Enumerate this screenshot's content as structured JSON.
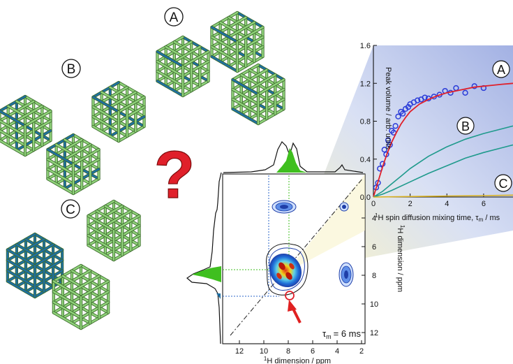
{
  "structure_labels": [
    "A",
    "B",
    "C"
  ],
  "question_mark": "?",
  "colors": {
    "green_cube": "#8fd17a",
    "blue_cube": "#1f6fa3",
    "fit_curve": "#e0202a",
    "data_points": "#2b3cd8",
    "model_curves": "#1f9a8c",
    "spectrum_fill": "#3fbf1f",
    "arrow": "#e02020"
  },
  "spectrum": {
    "mixing_time_label": "τ",
    "mixing_time_subscript": "m",
    "mixing_time_value": "= 6 ms",
    "x_axis_label_sup": "1",
    "x_axis_label": "H dimension / ppm",
    "y_axis_label_sup": "1",
    "y_axis_label": "H dimension  / ppm",
    "x_ticks": [
      "12",
      "10",
      "8",
      "6",
      "4",
      "2"
    ],
    "y_ticks": [
      "4",
      "6",
      "8",
      "10",
      "12"
    ]
  },
  "chart_data": {
    "type": "scatter",
    "ylabel": "Peak volume / arb. units",
    "xlabel_sup": "1",
    "xlabel": "H spin diffusion mixing time, τ",
    "xlabel_sub": "m",
    "xlabel_unit": " / ms",
    "xlim": [
      0,
      7.6
    ],
    "ylim": [
      0,
      1.6
    ],
    "x_ticks": [
      0,
      2,
      4,
      6
    ],
    "y_ticks": [
      0.0,
      0.4,
      0.8,
      1.2,
      1.6
    ],
    "y_tick_labels": [
      "0.0",
      "0.4",
      "0.8",
      "1.2",
      "1.6"
    ],
    "series": [
      {
        "label": "A",
        "kind": "points",
        "x": [
          0.15,
          0.25,
          0.35,
          0.5,
          0.6,
          0.7,
          0.8,
          0.9,
          1.0,
          1.1,
          1.2,
          1.35,
          1.5,
          1.6,
          1.75,
          1.9,
          2.0,
          2.2,
          2.4,
          2.6,
          2.8,
          3.0,
          3.3,
          3.6,
          3.9,
          4.2,
          4.5,
          5.0,
          5.5,
          6.0
        ],
        "y": [
          0.1,
          0.15,
          0.3,
          0.35,
          0.5,
          0.45,
          0.6,
          0.55,
          0.7,
          0.68,
          0.75,
          0.85,
          0.9,
          0.88,
          0.93,
          0.95,
          0.98,
          1.0,
          1.02,
          1.03,
          1.05,
          1.04,
          1.06,
          1.08,
          1.12,
          1.1,
          1.15,
          1.1,
          1.17,
          1.15
        ]
      },
      {
        "label": "A",
        "kind": "fit",
        "x": [
          0,
          0.25,
          0.5,
          0.75,
          1.0,
          1.25,
          1.5,
          1.75,
          2.0,
          2.5,
          3.0,
          3.5,
          4.0,
          4.5,
          5.0,
          5.5,
          6.0,
          6.5,
          7.0,
          7.6
        ],
        "y": [
          0.0,
          0.16,
          0.32,
          0.46,
          0.58,
          0.68,
          0.77,
          0.84,
          0.9,
          0.98,
          1.03,
          1.07,
          1.1,
          1.12,
          1.14,
          1.16,
          1.17,
          1.18,
          1.19,
          1.2
        ]
      },
      {
        "label": "B",
        "kind": "model",
        "x": [
          0,
          0.5,
          1.0,
          1.5,
          2.0,
          3.0,
          4.0,
          5.0,
          6.0,
          7.0,
          7.6
        ],
        "y": [
          0.0,
          0.06,
          0.14,
          0.22,
          0.3,
          0.43,
          0.53,
          0.61,
          0.67,
          0.72,
          0.75
        ]
      },
      {
        "label": "B",
        "kind": "model",
        "x": [
          0,
          0.5,
          1.0,
          2.0,
          3.0,
          4.0,
          5.0,
          6.0,
          7.0,
          7.6
        ],
        "y": [
          0.0,
          0.03,
          0.07,
          0.16,
          0.25,
          0.33,
          0.41,
          0.47,
          0.52,
          0.55
        ]
      },
      {
        "label": "C",
        "kind": "model",
        "x": [
          0,
          2,
          4,
          6,
          7.6
        ],
        "y": [
          0.0,
          0.005,
          0.01,
          0.015,
          0.02
        ]
      }
    ]
  }
}
